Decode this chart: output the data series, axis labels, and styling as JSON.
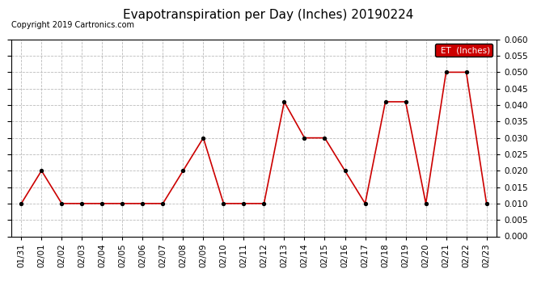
{
  "title": "Evapotranspiration per Day (Inches) 20190224",
  "copyright": "Copyright 2019 Cartronics.com",
  "legend_label": "ET  (Inches)",
  "legend_bg": "#cc0000",
  "legend_text_color": "#ffffff",
  "x_labels": [
    "01/31",
    "02/01",
    "02/02",
    "02/03",
    "02/04",
    "02/05",
    "02/06",
    "02/07",
    "02/08",
    "02/09",
    "02/10",
    "02/11",
    "02/12",
    "02/13",
    "02/14",
    "02/15",
    "02/16",
    "02/17",
    "02/18",
    "02/19",
    "02/20",
    "02/21",
    "02/22",
    "02/23"
  ],
  "y_values": [
    0.01,
    0.02,
    0.01,
    0.01,
    0.01,
    0.01,
    0.01,
    0.01,
    0.02,
    0.03,
    0.01,
    0.01,
    0.01,
    0.041,
    0.03,
    0.03,
    0.02,
    0.01,
    0.041,
    0.041,
    0.01,
    0.05,
    0.05,
    0.01
  ],
  "ylim": [
    0.0,
    0.06
  ],
  "yticks": [
    0.0,
    0.005,
    0.01,
    0.015,
    0.02,
    0.025,
    0.03,
    0.035,
    0.04,
    0.045,
    0.05,
    0.055,
    0.06
  ],
  "line_color": "#cc0000",
  "marker_color": "#000000",
  "bg_color": "#ffffff",
  "grid_color": "#bbbbbb",
  "title_fontsize": 11,
  "tick_fontsize": 7.5,
  "copyright_fontsize": 7
}
